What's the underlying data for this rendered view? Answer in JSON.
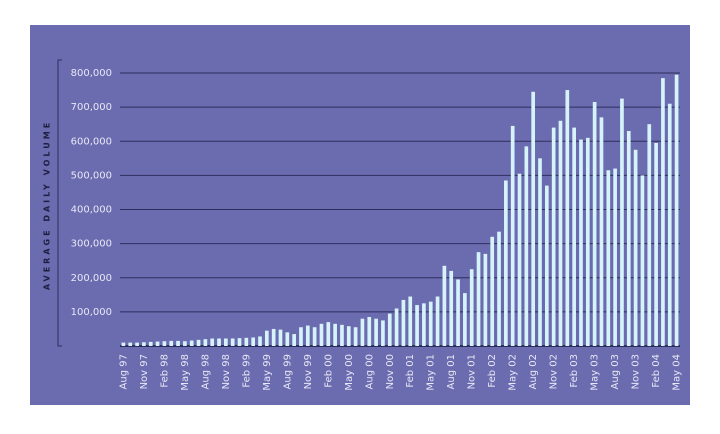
{
  "chart_data": {
    "type": "bar",
    "y_axis_label": "AVERAGE DAILY VOLUME",
    "categories": [
      "Aug 97",
      null,
      null,
      "Nov 97",
      null,
      null,
      "Feb 98",
      null,
      null,
      "May 98",
      null,
      null,
      "Aug 98",
      null,
      null,
      "Nov 98",
      null,
      null,
      "Feb 99",
      null,
      null,
      "May 99",
      null,
      null,
      "Aug 99",
      null,
      null,
      "Nov 99",
      null,
      null,
      "Feb 00",
      null,
      null,
      "May 00",
      null,
      null,
      "Aug 00",
      null,
      null,
      "Nov 00",
      null,
      null,
      "Feb 01",
      null,
      null,
      "May 01",
      null,
      null,
      "Aug 01",
      null,
      null,
      "Nov 01",
      null,
      null,
      "Feb 02",
      null,
      null,
      "May 02",
      null,
      null,
      "Aug 02",
      null,
      null,
      "Nov 02",
      null,
      null,
      "Feb 03",
      null,
      null,
      "May 03",
      null,
      null,
      "Aug 03",
      null,
      null,
      "Nov 03",
      null,
      null,
      "Feb 04",
      null,
      null,
      "May 04"
    ],
    "values": [
      10000,
      10000,
      10000,
      11000,
      12000,
      13000,
      14000,
      15000,
      15000,
      14000,
      16000,
      18000,
      20000,
      22000,
      22000,
      22000,
      22000,
      23000,
      24000,
      25000,
      28000,
      45000,
      50000,
      48000,
      40000,
      35000,
      55000,
      60000,
      55000,
      65000,
      70000,
      65000,
      62000,
      58000,
      55000,
      80000,
      85000,
      80000,
      75000,
      95000,
      110000,
      135000,
      145000,
      120000,
      125000,
      130000,
      145000,
      235000,
      220000,
      195000,
      155000,
      225000,
      275000,
      270000,
      320000,
      335000,
      485000,
      645000,
      505000,
      585000,
      745000,
      550000,
      470000,
      640000,
      660000,
      750000,
      640000,
      605000,
      610000,
      715000,
      670000,
      515000,
      520000,
      725000,
      630000,
      575000,
      500000,
      650000,
      595000,
      785000,
      710000,
      795000
    ],
    "color": "#d6f3fa",
    "ylim": [
      0,
      800000
    ],
    "yticks": [
      {
        "value": 100000,
        "label": "100,000"
      },
      {
        "value": 200000,
        "label": "200,000"
      },
      {
        "value": 300000,
        "label": "300,000"
      },
      {
        "value": 400000,
        "label": "400,000"
      },
      {
        "value": 500000,
        "label": "500,000"
      },
      {
        "value": 600000,
        "label": "600,000"
      },
      {
        "value": 700000,
        "label": "700,000"
      },
      {
        "value": 800000,
        "label": "800,000"
      }
    ],
    "grid": true
  }
}
